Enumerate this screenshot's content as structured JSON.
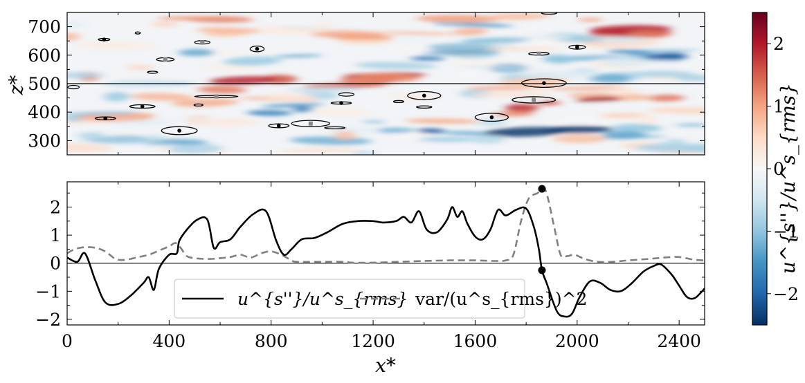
{
  "chart_data": [
    {
      "type": "heatmap",
      "panel": "top",
      "ylabel": "z*",
      "xlim": [
        0,
        2500
      ],
      "ylim": [
        250,
        750
      ],
      "y_ticks": [
        300,
        400,
        500,
        600,
        700
      ],
      "y_tick_labels": [
        "300",
        "400",
        "500",
        "600",
        "700"
      ],
      "colormap": "RdBu_r",
      "horizontal_line_z": 500,
      "structures": [
        {
          "x": 145,
          "z": 655,
          "w": 45,
          "h": 8,
          "dot": "black"
        },
        {
          "x": 277,
          "z": 678,
          "w": 20,
          "h": 5,
          "dot": "none"
        },
        {
          "x": 530,
          "z": 645,
          "w": 60,
          "h": 12,
          "dot": "grey"
        },
        {
          "x": 745,
          "z": 622,
          "w": 55,
          "h": 20,
          "dot": "black"
        },
        {
          "x": 385,
          "z": 585,
          "w": 70,
          "h": 12,
          "dot": "grey"
        },
        {
          "x": 335,
          "z": 540,
          "w": 40,
          "h": 4,
          "dot": "none"
        },
        {
          "x": 25,
          "z": 488,
          "w": 45,
          "h": 12,
          "dot": "none"
        },
        {
          "x": 1890,
          "z": 748,
          "w": 60,
          "h": 8,
          "dot": "none"
        },
        {
          "x": 1850,
          "z": 605,
          "w": 80,
          "h": 10,
          "dot": "grey"
        },
        {
          "x": 2000,
          "z": 628,
          "w": 65,
          "h": 14,
          "dot": "black"
        },
        {
          "x": 1870,
          "z": 502,
          "w": 175,
          "h": 30,
          "dot": "black"
        },
        {
          "x": 1830,
          "z": 443,
          "w": 170,
          "h": 22,
          "dot": "grey"
        },
        {
          "x": 1400,
          "z": 458,
          "w": 130,
          "h": 28,
          "dot": "black"
        },
        {
          "x": 1095,
          "z": 462,
          "w": 60,
          "h": 12,
          "dot": "none"
        },
        {
          "x": 1075,
          "z": 432,
          "w": 80,
          "h": 8,
          "dot": "black"
        },
        {
          "x": 1400,
          "z": 418,
          "w": 60,
          "h": 8,
          "dot": "none"
        },
        {
          "x": 1665,
          "z": 382,
          "w": 130,
          "h": 28,
          "dot": "black"
        },
        {
          "x": 1300,
          "z": 437,
          "w": 40,
          "h": 3,
          "dot": "none"
        },
        {
          "x": 585,
          "z": 455,
          "w": 170,
          "h": 5,
          "dot": "grey"
        },
        {
          "x": 295,
          "z": 420,
          "w": 100,
          "h": 12,
          "dot": "black"
        },
        {
          "x": 515,
          "z": 425,
          "w": 35,
          "h": 6,
          "dot": "none"
        },
        {
          "x": 150,
          "z": 378,
          "w": 80,
          "h": 10,
          "dot": "black"
        },
        {
          "x": 440,
          "z": 335,
          "w": 140,
          "h": 28,
          "dot": "black"
        },
        {
          "x": 830,
          "z": 352,
          "w": 80,
          "h": 14,
          "dot": "black"
        },
        {
          "x": 955,
          "z": 360,
          "w": 150,
          "h": 22,
          "dot": "grey"
        },
        {
          "x": 1050,
          "z": 345,
          "w": 80,
          "h": 5,
          "dot": "none"
        }
      ]
    },
    {
      "type": "line",
      "panel": "bottom",
      "xlabel": "x*",
      "xlim": [
        0,
        2500
      ],
      "ylim": [
        -2.2,
        2.9
      ],
      "x_ticks": [
        0,
        400,
        800,
        1200,
        1600,
        2000,
        2400
      ],
      "x_tick_labels": [
        "0",
        "400",
        "800",
        "1200",
        "1600",
        "2000",
        "2400"
      ],
      "y_ticks": [
        -2,
        -1,
        0,
        1,
        2
      ],
      "y_tick_labels": [
        "−2",
        "−1",
        "0",
        "1",
        "2"
      ],
      "horizontal_line_y": 0,
      "series": [
        {
          "name": "u^{s''}/u^s_{rms}",
          "style": "solid",
          "color": "#000000",
          "points": [
            [
              0,
              0.2
            ],
            [
              40,
              0.05
            ],
            [
              70,
              0.35
            ],
            [
              110,
              -0.6
            ],
            [
              150,
              -1.4
            ],
            [
              200,
              -1.45
            ],
            [
              250,
              -1.15
            ],
            [
              300,
              -0.7
            ],
            [
              320,
              -0.5
            ],
            [
              340,
              -0.95
            ],
            [
              360,
              -0.2
            ],
            [
              400,
              0.3
            ],
            [
              430,
              0.35
            ],
            [
              440,
              0.8
            ],
            [
              470,
              1.2
            ],
            [
              510,
              1.55
            ],
            [
              550,
              1.55
            ],
            [
              575,
              0.55
            ],
            [
              600,
              0.75
            ],
            [
              640,
              0.85
            ],
            [
              680,
              1.3
            ],
            [
              730,
              1.75
            ],
            [
              780,
              1.85
            ],
            [
              820,
              0.8
            ],
            [
              850,
              0.3
            ],
            [
              880,
              0.5
            ],
            [
              920,
              0.85
            ],
            [
              970,
              0.9
            ],
            [
              1020,
              1.1
            ],
            [
              1080,
              1.4
            ],
            [
              1140,
              1.5
            ],
            [
              1200,
              1.5
            ],
            [
              1240,
              1.45
            ],
            [
              1290,
              1.5
            ],
            [
              1320,
              1.65
            ],
            [
              1350,
              1.45
            ],
            [
              1380,
              1.85
            ],
            [
              1410,
              1.2
            ],
            [
              1450,
              1.1
            ],
            [
              1490,
              1.55
            ],
            [
              1510,
              2.0
            ],
            [
              1530,
              1.65
            ],
            [
              1550,
              1.85
            ],
            [
              1570,
              1.4
            ],
            [
              1600,
              0.95
            ],
            [
              1630,
              0.85
            ],
            [
              1660,
              1.2
            ],
            [
              1690,
              1.9
            ],
            [
              1720,
              1.7
            ],
            [
              1760,
              1.9
            ],
            [
              1800,
              1.95
            ],
            [
              1830,
              1.3
            ],
            [
              1850,
              0.5
            ],
            [
              1862,
              -0.25
            ],
            [
              1880,
              -0.7
            ],
            [
              1920,
              -1.7
            ],
            [
              1950,
              -1.9
            ],
            [
              1980,
              -1.8
            ],
            [
              2010,
              -1.2
            ],
            [
              2050,
              -0.65
            ],
            [
              2090,
              -0.7
            ],
            [
              2130,
              -0.95
            ],
            [
              2170,
              -1.0
            ],
            [
              2210,
              -0.75
            ],
            [
              2260,
              -0.3
            ],
            [
              2300,
              -0.1
            ],
            [
              2330,
              -0.05
            ],
            [
              2370,
              -0.4
            ],
            [
              2400,
              -0.8
            ],
            [
              2430,
              -1.2
            ],
            [
              2460,
              -1.25
            ],
            [
              2490,
              -1.0
            ],
            [
              2500,
              -0.9
            ]
          ]
        },
        {
          "name": "var/(u^s_{rms})^2",
          "style": "dashed",
          "color": "#808080",
          "points": [
            [
              0,
              0.35
            ],
            [
              30,
              0.5
            ],
            [
              70,
              0.57
            ],
            [
              110,
              0.55
            ],
            [
              150,
              0.42
            ],
            [
              190,
              0.15
            ],
            [
              230,
              0.12
            ],
            [
              270,
              0.2
            ],
            [
              320,
              0.3
            ],
            [
              360,
              0.45
            ],
            [
              400,
              0.6
            ],
            [
              425,
              0.72
            ],
            [
              445,
              0.55
            ],
            [
              470,
              0.25
            ],
            [
              510,
              0.17
            ],
            [
              560,
              0.15
            ],
            [
              600,
              0.18
            ],
            [
              640,
              0.22
            ],
            [
              680,
              0.3
            ],
            [
              720,
              0.2
            ],
            [
              760,
              0.35
            ],
            [
              800,
              0.42
            ],
            [
              840,
              0.3
            ],
            [
              880,
              0.1
            ],
            [
              900,
              0.05
            ],
            [
              1000,
              0.05
            ],
            [
              1080,
              0.05
            ],
            [
              1120,
              0.02
            ],
            [
              1200,
              0.02
            ],
            [
              1300,
              0.05
            ],
            [
              1400,
              0.08
            ],
            [
              1500,
              0.1
            ],
            [
              1600,
              0.1
            ],
            [
              1680,
              0.08
            ],
            [
              1720,
              0.1
            ],
            [
              1750,
              0.3
            ],
            [
              1780,
              1.5
            ],
            [
              1810,
              2.3
            ],
            [
              1845,
              2.5
            ],
            [
              1862,
              2.65
            ],
            [
              1880,
              2.5
            ],
            [
              1910,
              1.3
            ],
            [
              1935,
              0.3
            ],
            [
              1960,
              0.25
            ],
            [
              1990,
              0.3
            ],
            [
              2030,
              0.15
            ],
            [
              2080,
              0.05
            ],
            [
              2140,
              0.05
            ],
            [
              2200,
              0.1
            ],
            [
              2280,
              0.15
            ],
            [
              2340,
              0.2
            ],
            [
              2400,
              0.22
            ],
            [
              2460,
              0.12
            ],
            [
              2500,
              0.1
            ]
          ]
        }
      ],
      "markers": [
        {
          "x": 1862,
          "y": 2.65
        },
        {
          "x": 1862,
          "y": -0.25
        }
      ],
      "legend": {
        "placement": "lower-center",
        "entries": [
          "u^{s''}/u^s_{rms}",
          "var/(u^s_{rms})^2"
        ]
      }
    },
    {
      "type": "colorbar",
      "label": "u^{s''}/u^s_{rms}",
      "range": [
        -2.5,
        2.5
      ],
      "ticks": [
        -2,
        -1,
        0,
        1,
        2
      ],
      "tick_labels": [
        "−2",
        "−1",
        "0",
        "1",
        "2"
      ],
      "colormap": "RdBu_r"
    }
  ]
}
